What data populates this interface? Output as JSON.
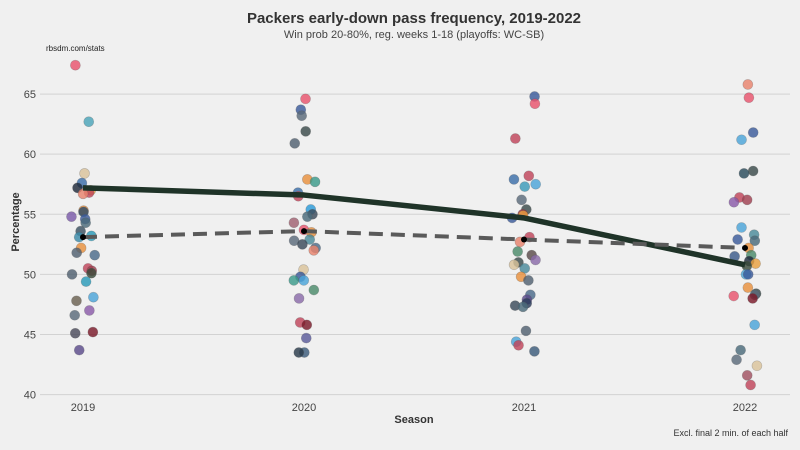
{
  "chart_data": {
    "type": "scatter",
    "title": "Packers early-down pass frequency, 2019-2022",
    "subtitle": "Win prob 20-80%, reg. weeks 1-18 (playoffs: WC-SB)",
    "source": "rbsdm.com/stats",
    "caption": "Excl. final 2 min. of each half",
    "xlabel": "Season",
    "ylabel": "Percentage",
    "categories": [
      "2019",
      "2020",
      "2021",
      "2022"
    ],
    "ylim": [
      39.8,
      68.5
    ],
    "yticks": [
      40,
      45,
      50,
      55,
      60,
      65
    ],
    "grid": "horizontal",
    "series": [
      {
        "kind": "scatter",
        "points": [
          {
            "x": "2019",
            "y": 67.4,
            "color": "#e8536d"
          },
          {
            "x": "2019",
            "y": 62.7,
            "color": "#4aa3b8"
          },
          {
            "x": "2019",
            "y": 58.4,
            "color": "#d9c29a"
          },
          {
            "x": "2019",
            "y": 57.6,
            "color": "#3a6ea8"
          },
          {
            "x": "2019",
            "y": 57.2,
            "color": "#1e2a3a"
          },
          {
            "x": "2019",
            "y": 57.0,
            "color": "#e8a040"
          },
          {
            "x": "2019",
            "y": 56.8,
            "color": "#c0445a"
          },
          {
            "x": "2019",
            "y": 56.7,
            "color": "#e8836d"
          },
          {
            "x": "2019",
            "y": 55.3,
            "color": "#e8903d"
          },
          {
            "x": "2019",
            "y": 55.2,
            "color": "#2d4a66"
          },
          {
            "x": "2019",
            "y": 54.8,
            "color": "#7a5aa8"
          },
          {
            "x": "2019",
            "y": 54.6,
            "color": "#3a5a9a"
          },
          {
            "x": "2019",
            "y": 54.3,
            "color": "#4a6a7a"
          },
          {
            "x": "2019",
            "y": 53.6,
            "color": "#3a5060"
          },
          {
            "x": "2019",
            "y": 53.2,
            "color": "#2a9ab8"
          },
          {
            "x": "2019",
            "y": 53.1,
            "color": "#3a8aa8"
          },
          {
            "x": "2019",
            "y": 52.2,
            "color": "#e8903d"
          },
          {
            "x": "2019",
            "y": 51.8,
            "color": "#506070"
          },
          {
            "x": "2019",
            "y": 51.6,
            "color": "#4a6a8a"
          },
          {
            "x": "2019",
            "y": 50.5,
            "color": "#c0445a"
          },
          {
            "x": "2019",
            "y": 50.3,
            "color": "#a04050"
          },
          {
            "x": "2019",
            "y": 50.1,
            "color": "#3a4a3a"
          },
          {
            "x": "2019",
            "y": 50.0,
            "color": "#506070"
          },
          {
            "x": "2019",
            "y": 49.4,
            "color": "#2a9ab8"
          },
          {
            "x": "2019",
            "y": 48.1,
            "color": "#4aa3d8"
          },
          {
            "x": "2019",
            "y": 47.8,
            "color": "#6a6050"
          },
          {
            "x": "2019",
            "y": 47.0,
            "color": "#8a5aa8"
          },
          {
            "x": "2019",
            "y": 46.6,
            "color": "#5a6a7a"
          },
          {
            "x": "2019",
            "y": 45.2,
            "color": "#7a1a2a"
          },
          {
            "x": "2019",
            "y": 45.1,
            "color": "#4a4a5a"
          },
          {
            "x": "2019",
            "y": 43.7,
            "color": "#5a4a8a"
          },
          {
            "x": "2020",
            "y": 64.6,
            "color": "#e8536d"
          },
          {
            "x": "2020",
            "y": 63.7,
            "color": "#3a5a9a"
          },
          {
            "x": "2020",
            "y": 63.2,
            "color": "#5a6a7a"
          },
          {
            "x": "2020",
            "y": 61.9,
            "color": "#3a4a4a"
          },
          {
            "x": "2020",
            "y": 60.9,
            "color": "#506070"
          },
          {
            "x": "2020",
            "y": 57.9,
            "color": "#e8903d"
          },
          {
            "x": "2020",
            "y": 57.7,
            "color": "#3a9a8a"
          },
          {
            "x": "2020",
            "y": 56.8,
            "color": "#3a6ea8"
          },
          {
            "x": "2020",
            "y": 56.5,
            "color": "#c0445a"
          },
          {
            "x": "2020",
            "y": 55.4,
            "color": "#2a9ad8"
          },
          {
            "x": "2020",
            "y": 55.0,
            "color": "#3a4a5a"
          },
          {
            "x": "2020",
            "y": 54.8,
            "color": "#4a6a7a"
          },
          {
            "x": "2020",
            "y": 54.3,
            "color": "#a06070"
          },
          {
            "x": "2020",
            "y": 53.7,
            "color": "#e8536d"
          },
          {
            "x": "2020",
            "y": 53.5,
            "color": "#e8903d"
          },
          {
            "x": "2020",
            "y": 52.9,
            "color": "#4a8a9a"
          },
          {
            "x": "2020",
            "y": 52.8,
            "color": "#5a6a7a"
          },
          {
            "x": "2020",
            "y": 52.5,
            "color": "#3a4a5a"
          },
          {
            "x": "2020",
            "y": 52.2,
            "color": "#4a6a8a"
          },
          {
            "x": "2020",
            "y": 52.0,
            "color": "#e8836d"
          },
          {
            "x": "2020",
            "y": 50.4,
            "color": "#d9c29a"
          },
          {
            "x": "2020",
            "y": 49.8,
            "color": "#3a5a9a"
          },
          {
            "x": "2020",
            "y": 49.5,
            "color": "#4aa3d8"
          },
          {
            "x": "2020",
            "y": 49.5,
            "color": "#3a9a8a"
          },
          {
            "x": "2020",
            "y": 48.7,
            "color": "#4a8a6a"
          },
          {
            "x": "2020",
            "y": 48.0,
            "color": "#8a6aa8"
          },
          {
            "x": "2020",
            "y": 46.0,
            "color": "#c0445a"
          },
          {
            "x": "2020",
            "y": 45.8,
            "color": "#7a1a2a"
          },
          {
            "x": "2020",
            "y": 44.7,
            "color": "#5a5a9a"
          },
          {
            "x": "2020",
            "y": 43.5,
            "color": "#3a5a7a"
          },
          {
            "x": "2020",
            "y": 43.5,
            "color": "#2a3a4a"
          },
          {
            "x": "2021",
            "y": 64.8,
            "color": "#3a5a9a"
          },
          {
            "x": "2021",
            "y": 64.2,
            "color": "#e8536d"
          },
          {
            "x": "2021",
            "y": 61.3,
            "color": "#c0445a"
          },
          {
            "x": "2021",
            "y": 58.2,
            "color": "#c0445a"
          },
          {
            "x": "2021",
            "y": 57.9,
            "color": "#3a6ea8"
          },
          {
            "x": "2021",
            "y": 57.5,
            "color": "#4aa3d8"
          },
          {
            "x": "2021",
            "y": 57.3,
            "color": "#3a9ab8"
          },
          {
            "x": "2021",
            "y": 56.2,
            "color": "#5a6a7a"
          },
          {
            "x": "2021",
            "y": 55.4,
            "color": "#3a4a4a"
          },
          {
            "x": "2021",
            "y": 55.0,
            "color": "#a03040"
          },
          {
            "x": "2021",
            "y": 54.9,
            "color": "#e8a040"
          },
          {
            "x": "2021",
            "y": 54.7,
            "color": "#3a5a9a"
          },
          {
            "x": "2021",
            "y": 53.1,
            "color": "#c0445a"
          },
          {
            "x": "2021",
            "y": 52.7,
            "color": "#e8836d"
          },
          {
            "x": "2021",
            "y": 51.9,
            "color": "#4a8a6a"
          },
          {
            "x": "2021",
            "y": 51.6,
            "color": "#5a4a4a"
          },
          {
            "x": "2021",
            "y": 51.2,
            "color": "#8a6aa8"
          },
          {
            "x": "2021",
            "y": 51.0,
            "color": "#3a4a4a"
          },
          {
            "x": "2021",
            "y": 50.8,
            "color": "#d9c29a"
          },
          {
            "x": "2021",
            "y": 50.5,
            "color": "#4a8a9a"
          },
          {
            "x": "2021",
            "y": 49.8,
            "color": "#e8903d"
          },
          {
            "x": "2021",
            "y": 49.5,
            "color": "#506070"
          },
          {
            "x": "2021",
            "y": 48.3,
            "color": "#4a6a8a"
          },
          {
            "x": "2021",
            "y": 47.9,
            "color": "#5a4a8a"
          },
          {
            "x": "2021",
            "y": 47.6,
            "color": "#2a3a5a"
          },
          {
            "x": "2021",
            "y": 47.4,
            "color": "#3a4a5a"
          },
          {
            "x": "2021",
            "y": 47.3,
            "color": "#4a6a7a"
          },
          {
            "x": "2021",
            "y": 45.3,
            "color": "#506070"
          },
          {
            "x": "2021",
            "y": 44.4,
            "color": "#4aa3d8"
          },
          {
            "x": "2021",
            "y": 44.1,
            "color": "#c0445a"
          },
          {
            "x": "2021",
            "y": 43.6,
            "color": "#3a5a7a"
          },
          {
            "x": "2022",
            "y": 65.8,
            "color": "#e8836d"
          },
          {
            "x": "2022",
            "y": 64.7,
            "color": "#e8536d"
          },
          {
            "x": "2022",
            "y": 61.8,
            "color": "#3a5a9a"
          },
          {
            "x": "2022",
            "y": 61.2,
            "color": "#4aa3d8"
          },
          {
            "x": "2022",
            "y": 58.6,
            "color": "#3a4a4a"
          },
          {
            "x": "2022",
            "y": 58.4,
            "color": "#2a4a5a"
          },
          {
            "x": "2022",
            "y": 56.4,
            "color": "#c0445a"
          },
          {
            "x": "2022",
            "y": 56.2,
            "color": "#a04050"
          },
          {
            "x": "2022",
            "y": 56.0,
            "color": "#8a5aa8"
          },
          {
            "x": "2022",
            "y": 53.9,
            "color": "#4aa3d8"
          },
          {
            "x": "2022",
            "y": 53.3,
            "color": "#4a8a9a"
          },
          {
            "x": "2022",
            "y": 52.9,
            "color": "#3a5a9a"
          },
          {
            "x": "2022",
            "y": 52.8,
            "color": "#4a6a7a"
          },
          {
            "x": "2022",
            "y": 52.2,
            "color": "#e8903d"
          },
          {
            "x": "2022",
            "y": 51.6,
            "color": "#4a8a6a"
          },
          {
            "x": "2022",
            "y": 51.5,
            "color": "#3a5a8a"
          },
          {
            "x": "2022",
            "y": 51.1,
            "color": "#1e2a3a"
          },
          {
            "x": "2022",
            "y": 50.9,
            "color": "#e8a040"
          },
          {
            "x": "2022",
            "y": 50.7,
            "color": "#3a4a3a"
          },
          {
            "x": "2022",
            "y": 50.0,
            "color": "#4aa3d8"
          },
          {
            "x": "2022",
            "y": 50.0,
            "color": "#3a5a9a"
          },
          {
            "x": "2022",
            "y": 48.9,
            "color": "#e8903d"
          },
          {
            "x": "2022",
            "y": 48.4,
            "color": "#3a4a4a"
          },
          {
            "x": "2022",
            "y": 48.3,
            "color": "#5a6a7a"
          },
          {
            "x": "2022",
            "y": 48.2,
            "color": "#e8536d"
          },
          {
            "x": "2022",
            "y": 48.0,
            "color": "#7a1a2a"
          },
          {
            "x": "2022",
            "y": 45.8,
            "color": "#4aa3d8"
          },
          {
            "x": "2022",
            "y": 43.7,
            "color": "#4a6a7a"
          },
          {
            "x": "2022",
            "y": 42.9,
            "color": "#5a6a7a"
          },
          {
            "x": "2022",
            "y": 42.4,
            "color": "#d9c29a"
          },
          {
            "x": "2022",
            "y": 41.6,
            "color": "#a05060"
          },
          {
            "x": "2022",
            "y": 40.8,
            "color": "#c0445a"
          }
        ]
      },
      {
        "kind": "line",
        "style": "solid",
        "color": "#1f3328",
        "values": [
          57.2,
          56.6,
          54.7,
          50.8
        ]
      },
      {
        "kind": "line",
        "style": "dashed",
        "color": "#5a5a5a",
        "values": [
          53.1,
          53.6,
          52.9,
          52.2
        ]
      }
    ],
    "highlight_points": [
      {
        "x": "2019",
        "y": 53.1,
        "color": "#000000"
      },
      {
        "x": "2020",
        "y": 53.6,
        "color": "#000000"
      },
      {
        "x": "2021",
        "y": 52.9,
        "color": "#000000"
      },
      {
        "x": "2022",
        "y": 52.2,
        "color": "#000000"
      }
    ]
  }
}
